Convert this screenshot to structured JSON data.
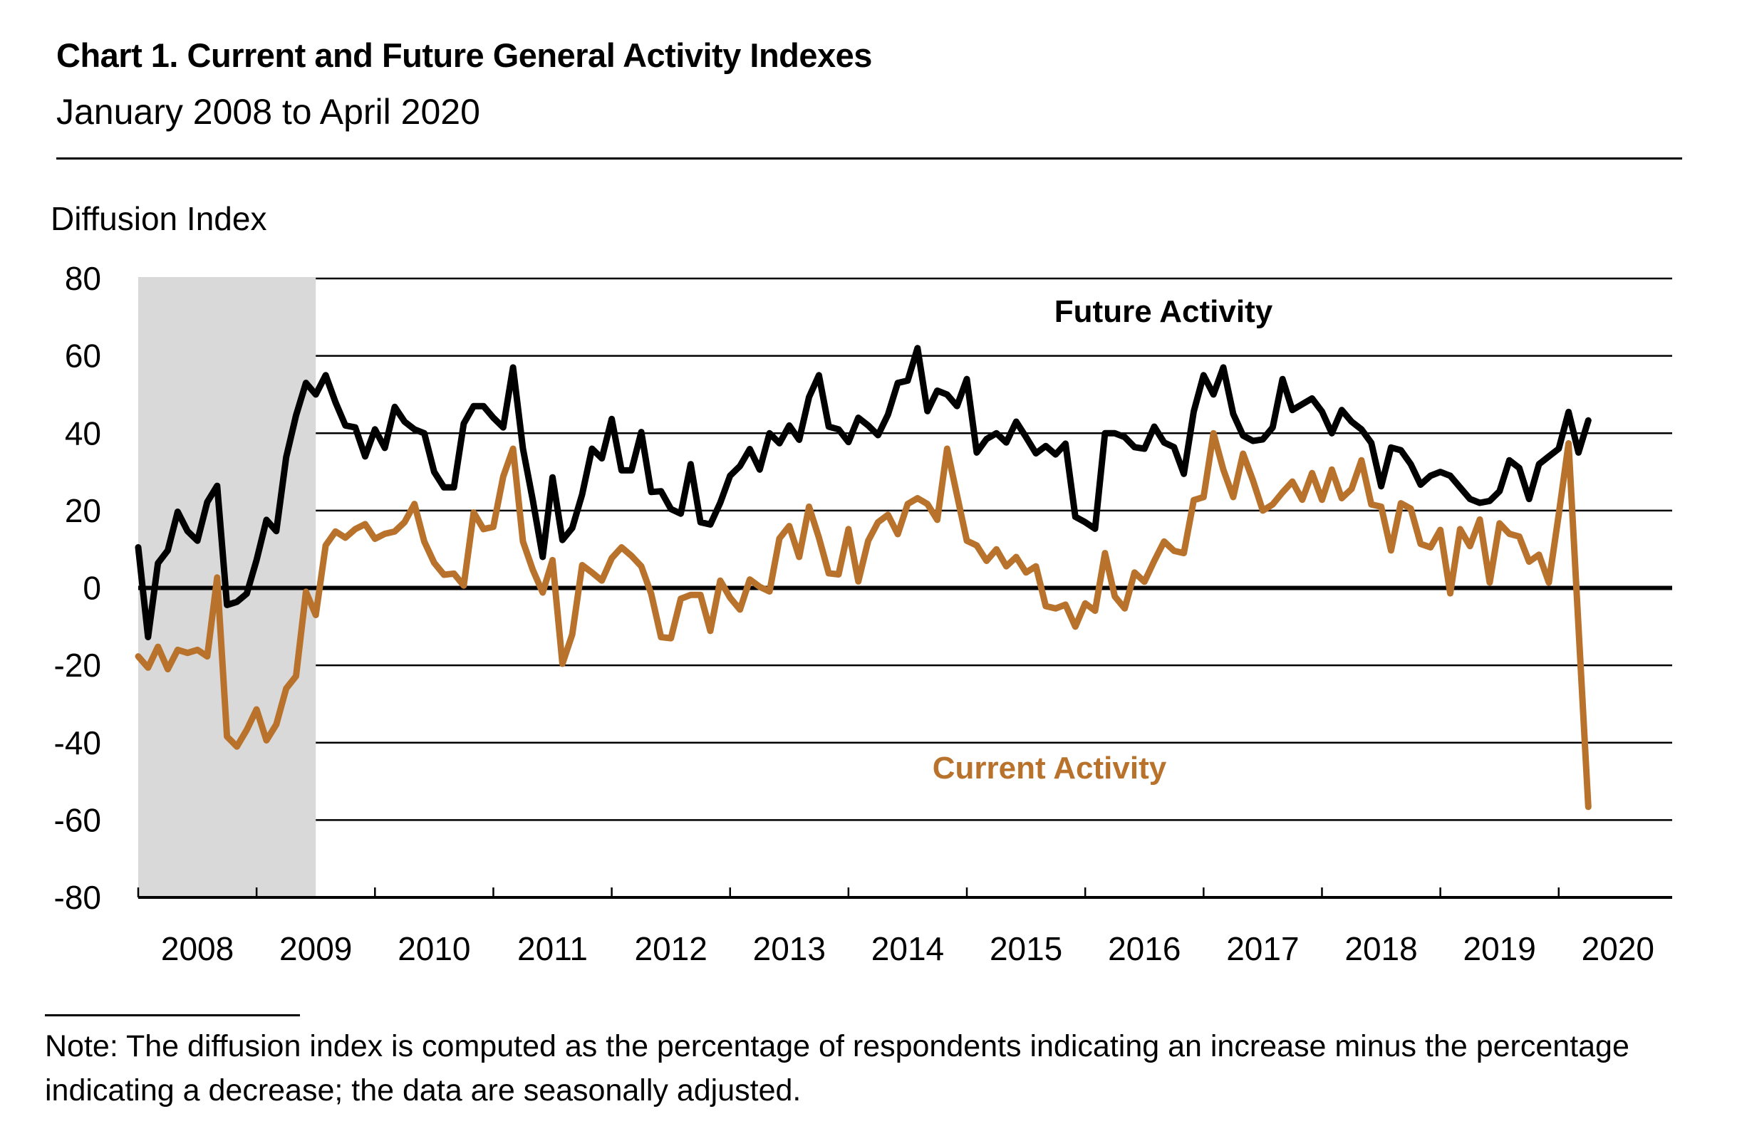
{
  "header": {
    "title": "Chart 1. Current and Future General Activity Indexes",
    "subtitle": "January 2008 to April 2020"
  },
  "note": "Note: The diffusion index is computed as the percentage of respondents indicating an increase minus the percentage indicating a decrease; the data are seasonally adjusted.",
  "colors": {
    "future": "#000000",
    "current": "#B8722C",
    "recession_shading": "#D9D9D9",
    "gridline": "#000000"
  },
  "chart_data": {
    "type": "line",
    "title": "Chart 1. Current and Future General Activity Indexes",
    "subtitle": "January 2008 to April 2020",
    "ylabel": "Diffusion Index",
    "xlabel": "",
    "ylim": [
      -80,
      80
    ],
    "yticks": [
      80,
      60,
      40,
      20,
      0,
      -20,
      -40,
      -60,
      -80
    ],
    "xlim_months": [
      "2008-01",
      "2020-12"
    ],
    "xtick_labels": [
      "2008",
      "2009",
      "2010",
      "2011",
      "2012",
      "2013",
      "2014",
      "2015",
      "2016",
      "2017",
      "2018",
      "2019",
      "2020"
    ],
    "grid": true,
    "start_month": "2008-01",
    "frequency": "monthly",
    "shaded_periods": [
      {
        "label": "recession",
        "start": "2008-01",
        "end": "2009-06"
      }
    ],
    "series": [
      {
        "name": "Future Activity",
        "label_text": "Future Activity",
        "color": "#000000",
        "values": [
          10.5,
          -12.7,
          6.4,
          9.7,
          19.7,
          14.7,
          12.2,
          22.2,
          26.4,
          -4.4,
          -3.6,
          -1.5,
          7.2,
          17.6,
          14.7,
          33.8,
          44.6,
          53,
          50,
          55,
          48,
          42,
          41.5,
          34,
          41,
          36.2,
          46.8,
          43,
          41,
          40,
          30,
          26,
          26,
          42.5,
          47,
          47,
          44,
          41.5,
          57,
          36,
          22.7,
          8,
          28.6,
          12.4,
          15.5,
          24.2,
          36,
          33.5,
          43.7,
          30.4,
          30.4,
          40.3,
          24.8,
          25,
          20.4,
          19.2,
          32,
          17,
          16.4,
          22,
          29,
          31.5,
          35.9,
          30.6,
          40,
          37.4,
          42,
          38.3,
          49.3,
          55,
          41.7,
          41,
          37.7,
          44,
          42,
          39.5,
          44.8,
          53,
          53.6,
          62,
          45.7,
          51,
          50,
          47,
          54,
          35,
          38.5,
          40,
          37.6,
          43,
          39,
          34.8,
          36.7,
          34.5,
          37.3,
          18.4,
          17,
          15.3,
          40,
          40,
          39,
          36.4,
          36,
          41.7,
          37.6,
          36.4,
          29.5,
          45.6,
          55,
          50,
          57,
          45,
          39.4,
          38,
          38.4,
          41.5,
          54,
          46,
          47.5,
          49,
          45.6,
          40,
          46,
          43,
          41,
          37.5,
          26.3,
          36.3,
          35.6,
          32,
          26.7,
          29,
          30,
          29,
          26,
          23,
          22,
          22.5,
          25,
          33,
          31,
          23,
          32,
          34,
          36,
          45.5,
          35,
          43.3
        ]
      },
      {
        "name": "Current Activity",
        "label_text": "Current Activity",
        "color": "#B8722C",
        "values": [
          -17.7,
          -20.6,
          -15.2,
          -21,
          -16,
          -16.8,
          -16,
          -17.7,
          2.7,
          -38.4,
          -41,
          -36.7,
          -31.4,
          -39.4,
          -35.3,
          -26,
          -22.8,
          -1,
          -7,
          11,
          14.6,
          13,
          15.2,
          16.5,
          12.7,
          14,
          14.6,
          17,
          21.7,
          12,
          6.5,
          3.4,
          3.7,
          0.6,
          19.5,
          15.2,
          15.8,
          28.8,
          36,
          12,
          4.7,
          -1.2,
          7.2,
          -19.6,
          -12,
          5.9,
          4,
          1.9,
          7.7,
          10.5,
          8.3,
          5.6,
          -1.5,
          -12.7,
          -13,
          -2.8,
          -1.8,
          -1.8,
          -11.1,
          1.9,
          -2.5,
          -5.6,
          2.2,
          0.3,
          -0.9,
          12.8,
          16,
          8,
          21,
          13,
          3.8,
          3.5,
          15.2,
          1.7,
          12.2,
          17,
          18.9,
          13.9,
          21.7,
          23.2,
          21.7,
          17.6,
          36,
          24,
          12.2,
          11,
          7,
          10,
          5.6,
          8,
          4,
          5.6,
          -4.7,
          -5.3,
          -4.3,
          -10,
          -4,
          -5.9,
          9,
          -2.2,
          -5.3,
          4,
          1.6,
          7,
          12,
          9.6,
          9,
          22.7,
          23.5,
          40,
          30.6,
          23.5,
          34.7,
          27.8,
          20,
          21.6,
          24.7,
          27.5,
          22.8,
          29.7,
          22.8,
          30.6,
          23.2,
          25.6,
          33,
          21.6,
          21,
          9.7,
          21.9,
          20.5,
          11.4,
          10.5,
          15,
          -1.4,
          15.2,
          10.8,
          17.7,
          1.4,
          16.7,
          14,
          13.3,
          6.8,
          8.6,
          1.4,
          19,
          37.4,
          -10,
          -56.6
        ]
      }
    ],
    "annotations": [
      {
        "text": "Future Activity",
        "series": "Future Activity",
        "near": "top-center, above 2016-2017 peak"
      },
      {
        "text": "Current Activity",
        "series": "Current Activity",
        "near": "lower-center, below 2016-2017 at about -45"
      }
    ],
    "legend": "none (inline series labels)"
  }
}
